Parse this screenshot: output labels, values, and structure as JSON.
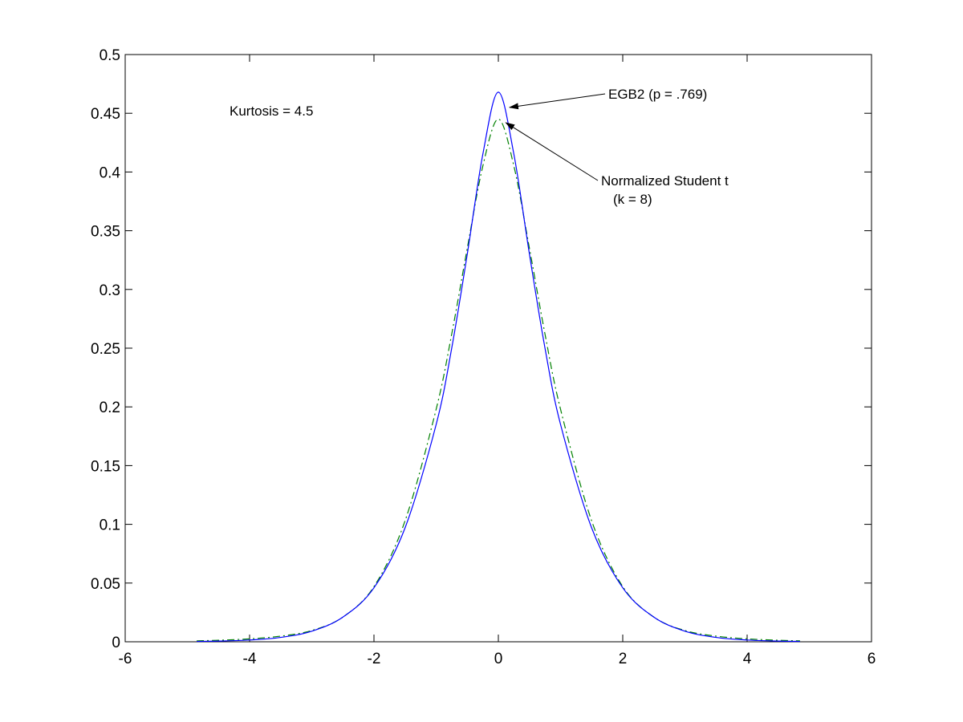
{
  "chart_data": {
    "type": "line",
    "title": "",
    "xlabel": "",
    "ylabel": "",
    "xlim": [
      -6,
      6
    ],
    "ylim": [
      0,
      0.5
    ],
    "x_ticks": [
      "-6",
      "-4",
      "-2",
      "0",
      "2",
      "4",
      "6"
    ],
    "y_ticks": [
      "0",
      "0.05",
      "0.1",
      "0.15",
      "0.2",
      "0.25",
      "0.3",
      "0.35",
      "0.4",
      "0.45",
      "0.5"
    ],
    "grid": false,
    "series": [
      {
        "line_style": "solid",
        "color": "#0000ff",
        "x": [
          -4.85,
          -4.5,
          -4.0,
          -3.5,
          -3.0,
          -2.5,
          -2.0,
          -1.5,
          -1.0,
          -0.75,
          -0.5,
          -0.25,
          0.0,
          0.25,
          0.5,
          0.75,
          1.0,
          1.5,
          2.0,
          2.5,
          3.0,
          3.5,
          4.0,
          4.5,
          4.85
        ],
        "y": [
          0.0003,
          0.0006,
          0.0015,
          0.0037,
          0.009,
          0.021,
          0.046,
          0.097,
          0.185,
          0.25,
          0.33,
          0.415,
          0.468,
          0.415,
          0.33,
          0.25,
          0.185,
          0.097,
          0.046,
          0.021,
          0.009,
          0.0037,
          0.0015,
          0.0006,
          0.0003
        ]
      },
      {
        "line_style": "dash-dot",
        "color": "#008000",
        "x": [
          -4.85,
          -4.5,
          -4.0,
          -3.5,
          -3.0,
          -2.5,
          -2.0,
          -1.5,
          -1.0,
          -0.75,
          -0.5,
          -0.25,
          0.0,
          0.25,
          0.5,
          0.75,
          1.0,
          1.5,
          2.0,
          2.5,
          3.0,
          3.5,
          4.0,
          4.5,
          4.85
        ],
        "y": [
          0.0008,
          0.0013,
          0.0025,
          0.0048,
          0.0096,
          0.021,
          0.047,
          0.103,
          0.198,
          0.262,
          0.335,
          0.405,
          0.445,
          0.405,
          0.335,
          0.262,
          0.198,
          0.103,
          0.047,
          0.021,
          0.0096,
          0.0048,
          0.0025,
          0.0013,
          0.0008
        ]
      }
    ],
    "annotations": [
      {
        "text": "Kurtosis = 4.5"
      },
      {
        "text": "EGB2 (p = .769)",
        "arrow_target": [
          0.18,
          0.455
        ]
      },
      {
        "text": "Normalized Student t",
        "text2": "(k = 8)",
        "arrow_target": [
          0.12,
          0.442
        ]
      }
    ]
  }
}
